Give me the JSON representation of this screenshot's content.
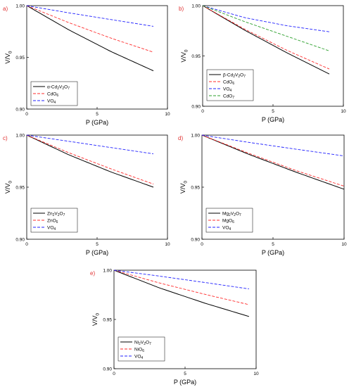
{
  "chart_data": [
    {
      "type": "line",
      "panel_label": "a)",
      "xlabel_text": "P (GPa)",
      "ylabel_main": "V/V",
      "ylabel_sub": "0",
      "xlim": [
        0,
        10
      ],
      "ylim": [
        0.9,
        1.0
      ],
      "xticks": [
        "0",
        "5",
        "10"
      ],
      "yticks": [
        "0.90",
        "0.95",
        "1.00"
      ],
      "legend_position": "bottom-left",
      "series": [
        {
          "legend_text": "α-Cd",
          "legend_sub": [
            "2",
            "V",
            "2",
            "O",
            "7"
          ],
          "color": "#000000",
          "dash": "solid",
          "x": [
            0,
            3,
            6,
            9
          ],
          "y": [
            1.0,
            0.9765,
            0.9555,
            0.937
          ]
        },
        {
          "legend_text": "CdO",
          "legend_sub": [
            "6"
          ],
          "color": "#ff2b2b",
          "dash": "dashed",
          "x": [
            0,
            3,
            6,
            9
          ],
          "y": [
            1.0,
            0.9835,
            0.9685,
            0.955
          ]
        },
        {
          "legend_text": "VO",
          "legend_sub": [
            "4"
          ],
          "color": "#2020ff",
          "dash": "dashed",
          "x": [
            0,
            3,
            6,
            9
          ],
          "y": [
            1.0,
            0.993,
            0.9865,
            0.98
          ]
        }
      ]
    },
    {
      "type": "line",
      "panel_label": "b)",
      "xlabel_text": "P (GPa)",
      "ylabel_main": "V/V",
      "ylabel_sub": "0",
      "xlim": [
        0,
        10
      ],
      "ylim": [
        0.9,
        1.0
      ],
      "xticks": [
        "0",
        "5",
        "10"
      ],
      "yticks": [
        "0.90",
        "0.95",
        "1.00"
      ],
      "legend_position": "bottom-left",
      "series": [
        {
          "legend_text": "β-Cd",
          "legend_sub": [
            "2",
            "V",
            "2",
            "O",
            "7"
          ],
          "color": "#000000",
          "dash": "solid",
          "x": [
            0,
            3,
            6,
            9
          ],
          "y": [
            1.0,
            0.9755,
            0.953,
            0.932
          ]
        },
        {
          "legend_text": "CdO",
          "legend_sub": [
            "6"
          ],
          "color": "#ff2b2b",
          "dash": "dashed",
          "x": [
            0,
            3,
            6,
            9
          ],
          "y": [
            1.0,
            0.9765,
            0.9555,
            0.937
          ]
        },
        {
          "legend_text": "VO",
          "legend_sub": [
            "4"
          ],
          "color": "#2020ff",
          "dash": "dashed",
          "x": [
            0,
            3,
            6,
            9
          ],
          "y": [
            1.0,
            0.988,
            0.98,
            0.974
          ]
        },
        {
          "legend_text": "CdO",
          "legend_sub": [
            "7"
          ],
          "color": "#2ca02c",
          "dash": "dashed",
          "x": [
            0,
            3,
            6,
            9
          ],
          "y": [
            1.0,
            0.984,
            0.9695,
            0.955
          ]
        }
      ]
    },
    {
      "type": "line",
      "panel_label": "c)",
      "xlabel_text": "P (GPa)",
      "ylabel_main": "V/V",
      "ylabel_sub": "0",
      "xlim": [
        0,
        10
      ],
      "ylim": [
        0.9,
        1.0
      ],
      "xticks": [
        "0",
        "5",
        "10"
      ],
      "yticks": [
        "0.90",
        "0.95",
        "1.00"
      ],
      "legend_position": "bottom-left",
      "series": [
        {
          "legend_text": "Zn",
          "legend_sub": [
            "2",
            "V",
            "2",
            "O",
            "7"
          ],
          "color": "#000000",
          "dash": "solid",
          "x": [
            0,
            3,
            6,
            9
          ],
          "y": [
            1.0,
            0.981,
            0.9645,
            0.95
          ]
        },
        {
          "legend_text": "ZnO",
          "legend_sub": [
            "6"
          ],
          "color": "#ff2b2b",
          "dash": "dashed",
          "x": [
            0,
            3,
            6,
            9
          ],
          "y": [
            1.0,
            0.983,
            0.9675,
            0.953
          ]
        },
        {
          "legend_text": "VO",
          "legend_sub": [
            "4"
          ],
          "color": "#2020ff",
          "dash": "dashed",
          "x": [
            0,
            3,
            6,
            9
          ],
          "y": [
            1.0,
            0.994,
            0.988,
            0.982
          ]
        }
      ]
    },
    {
      "type": "line",
      "panel_label": "d)",
      "xlabel_text": "P (GPa)",
      "ylabel_main": "V/V",
      "ylabel_sub": "0",
      "xlim": [
        0,
        10
      ],
      "ylim": [
        0.9,
        1.0
      ],
      "xticks": [
        "0",
        "5",
        "10"
      ],
      "yticks": [
        "0.90",
        "0.95",
        "1.00"
      ],
      "legend_position": "bottom-left",
      "series": [
        {
          "legend_text": "Mg",
          "legend_sub": [
            "2",
            "V",
            "2",
            "O",
            "7"
          ],
          "color": "#000000",
          "dash": "solid",
          "x": [
            0,
            3.3,
            6.6,
            10
          ],
          "y": [
            1.0,
            0.9815,
            0.9645,
            0.948
          ]
        },
        {
          "legend_text": "MgO",
          "legend_sub": [
            "6"
          ],
          "color": "#ff2b2b",
          "dash": "dashed",
          "x": [
            0,
            3.3,
            6.6,
            10
          ],
          "y": [
            1.0,
            0.9825,
            0.966,
            0.951
          ]
        },
        {
          "legend_text": "VO",
          "legend_sub": [
            "4"
          ],
          "color": "#2020ff",
          "dash": "dashed",
          "x": [
            0,
            3.3,
            6.6,
            10
          ],
          "y": [
            1.0,
            0.993,
            0.9865,
            0.98
          ]
        }
      ]
    },
    {
      "type": "line",
      "panel_label": "e)",
      "xlabel_text": "P (GPa)",
      "ylabel_main": "V/V",
      "ylabel_sub": "0",
      "xlim": [
        0,
        10
      ],
      "ylim": [
        0.9,
        1.0
      ],
      "xticks": [
        "0",
        "5",
        "10"
      ],
      "yticks": [
        "0.90",
        "0.95",
        "1.00"
      ],
      "legend_position": "bottom-left",
      "series": [
        {
          "legend_text": "Ni",
          "legend_sub": [
            "2",
            "V",
            "2",
            "O",
            "7"
          ],
          "color": "#000000",
          "dash": "solid",
          "x": [
            0,
            3.2,
            6.4,
            9.5
          ],
          "y": [
            1.0,
            0.982,
            0.9665,
            0.953
          ]
        },
        {
          "legend_text": "NiO",
          "legend_sub": [
            "6"
          ],
          "color": "#ff2b2b",
          "dash": "dashed",
          "x": [
            0,
            3.2,
            6.4,
            9.5
          ],
          "y": [
            1.0,
            0.987,
            0.9755,
            0.965
          ]
        },
        {
          "legend_text": "VO",
          "legend_sub": [
            "4"
          ],
          "color": "#2020ff",
          "dash": "dashed",
          "x": [
            0,
            3.2,
            6.4,
            9.5
          ],
          "y": [
            1.0,
            0.994,
            0.9875,
            0.981
          ]
        }
      ]
    }
  ]
}
